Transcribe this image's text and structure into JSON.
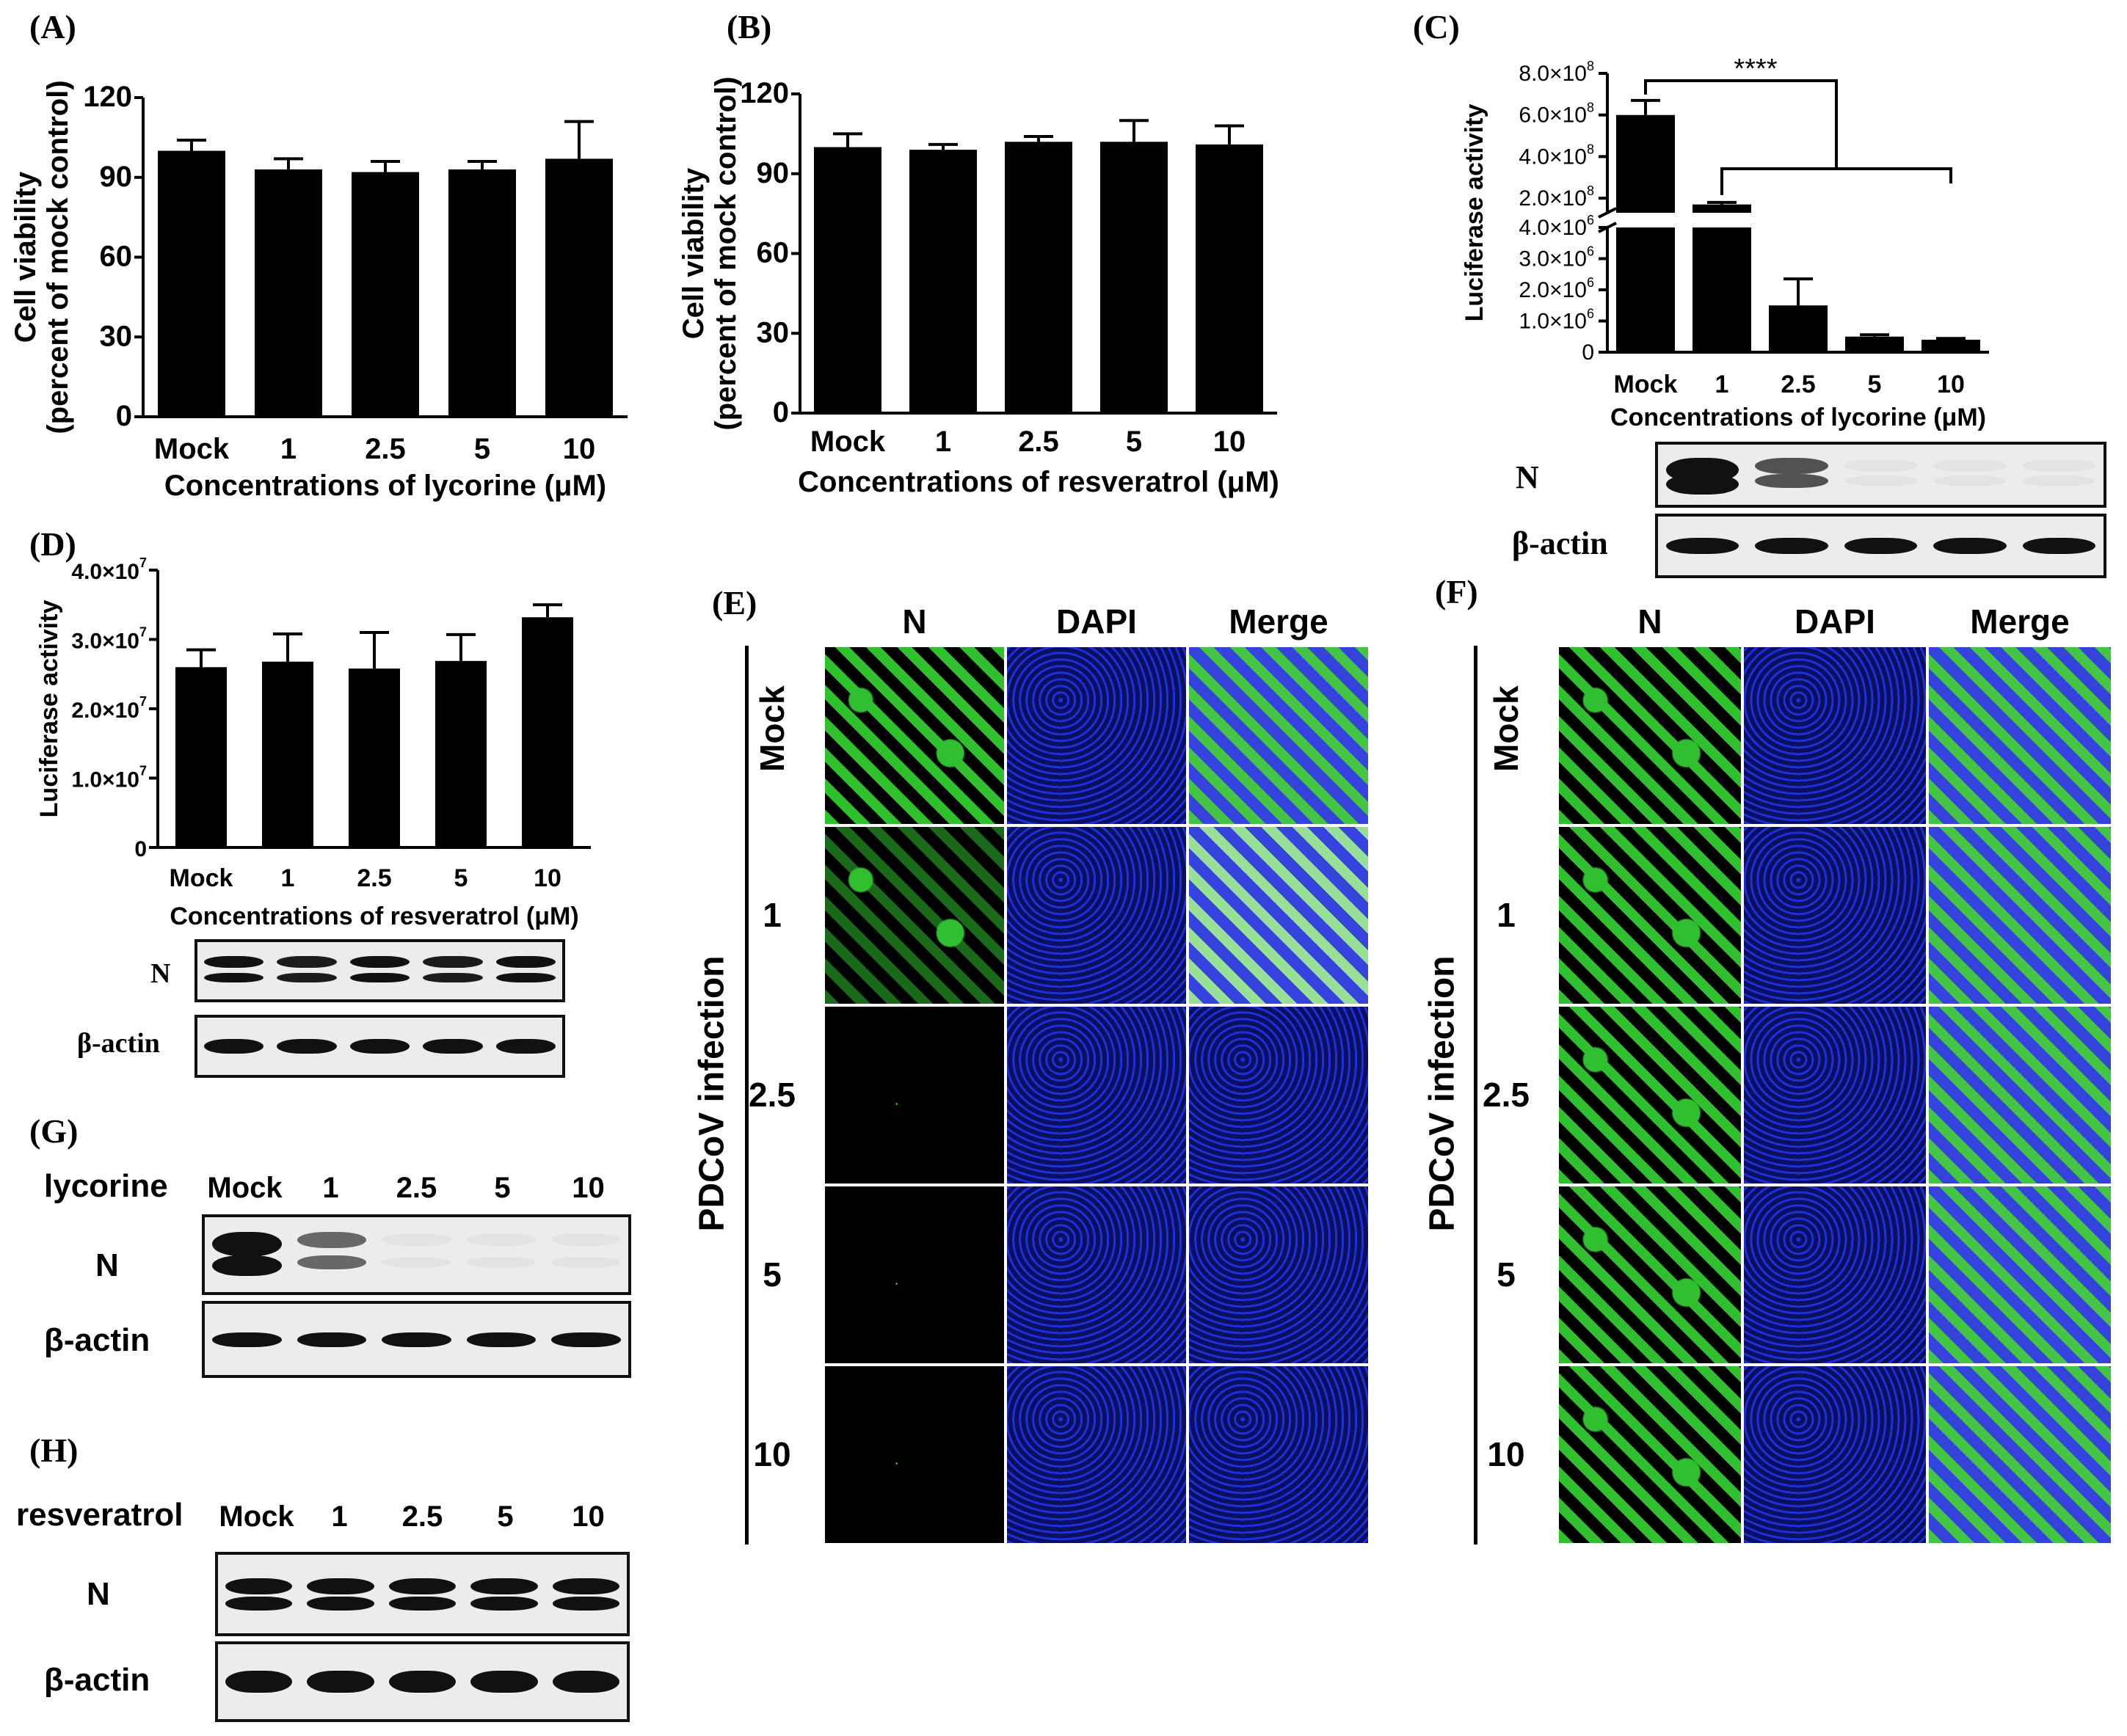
{
  "panels": {
    "A": "(A)",
    "B": "(B)",
    "C": "(C)",
    "D": "(D)",
    "E": "(E)",
    "F": "(F)",
    "G": "(G)",
    "H": "(H)"
  },
  "lanes": [
    "Mock",
    "1",
    "2.5",
    "5",
    "10"
  ],
  "chart_data": [
    {
      "panel": "A",
      "type": "bar",
      "categories": [
        "Mock",
        "1",
        "2.5",
        "5",
        "10"
      ],
      "values": [
        100,
        93,
        92,
        93,
        97
      ],
      "errors": [
        4,
        4,
        4,
        3,
        14
      ],
      "xlabel": "Concentrations of lycorine (μM)",
      "ylabel": "Cell viability",
      "ylabel2": "(percent of mock control)",
      "ylim": [
        0,
        120
      ],
      "yticks": [
        "0",
        "30",
        "60",
        "90",
        "120"
      ]
    },
    {
      "panel": "B",
      "type": "bar",
      "categories": [
        "Mock",
        "1",
        "2.5",
        "5",
        "10"
      ],
      "values": [
        100,
        99,
        102,
        102,
        101
      ],
      "errors": [
        5,
        2,
        2,
        8,
        7
      ],
      "xlabel": "Concentrations of resveratrol (μM)",
      "ylabel": "Cell viability",
      "ylabel2": "(percent of mock control)",
      "ylim": [
        0,
        120
      ],
      "yticks": [
        "0",
        "30",
        "60",
        "90",
        "120"
      ]
    },
    {
      "panel": "C",
      "type": "bar",
      "categories": [
        "Mock",
        "1",
        "2.5",
        "5",
        "10"
      ],
      "values": [
        600000000,
        170000000,
        1500000,
        500000,
        400000
      ],
      "errors": [
        70000000,
        10000000,
        850000,
        60000,
        40000
      ],
      "xlabel": "Concentrations of lycorine (μM)",
      "ylabel": "Luciferase activity",
      "ylim_upper": [
        0,
        800000000
      ],
      "ylim_lower": [
        0,
        4000000
      ],
      "yticks_upper": [
        "2.0×10",
        "4.0×10",
        "6.0×10",
        "8.0×10"
      ],
      "yticks_lower": [
        "0",
        "1.0×10",
        "2.0×10",
        "3.0×10",
        "4.0×10"
      ],
      "exp_upper": "8",
      "exp_lower": "6",
      "significance": "****"
    },
    {
      "panel": "D",
      "type": "bar",
      "categories": [
        "Mock",
        "1",
        "2.5",
        "5",
        "10"
      ],
      "values": [
        26000000,
        26800000,
        25800000,
        26900000,
        33200000
      ],
      "errors": [
        2500000,
        4000000,
        5200000,
        3800000,
        1800000
      ],
      "xlabel": "Concentrations of resveratrol (μM)",
      "ylabel": "Luciferase activity",
      "ylim": [
        0,
        40000000
      ],
      "yticks": [
        "0",
        "1.0×10",
        "2.0×10",
        "3.0×10",
        "4.0×10"
      ],
      "exp": "7"
    }
  ],
  "blots": {
    "N": "N",
    "actin": "β-actin",
    "lycorine": "lycorine",
    "resveratrol": "resveratrol",
    "C_N": [
      1.0,
      0.7,
      0.04,
      0.03,
      0.03
    ],
    "D_N": [
      1.0,
      0.95,
      1.0,
      0.95,
      1.0
    ],
    "G_N": [
      1.0,
      0.6,
      0.02,
      0.02,
      0.02
    ],
    "H_N": [
      1.0,
      1.0,
      1.0,
      1.0,
      1.0
    ]
  },
  "ifa": {
    "columns": [
      "N",
      "DAPI",
      "Merge"
    ],
    "side_title": "PDCoV infection",
    "rows": [
      "Mock",
      "1",
      "2.5",
      "5",
      "10"
    ],
    "E_green": [
      1.0,
      0.55,
      0.03,
      0.02,
      0.01
    ],
    "F_green": [
      1.0,
      1.0,
      1.0,
      1.0,
      1.0
    ],
    "colors": {
      "green": "#2fbf2f",
      "blue": "#1f2fd8",
      "black": "#000000"
    }
  }
}
